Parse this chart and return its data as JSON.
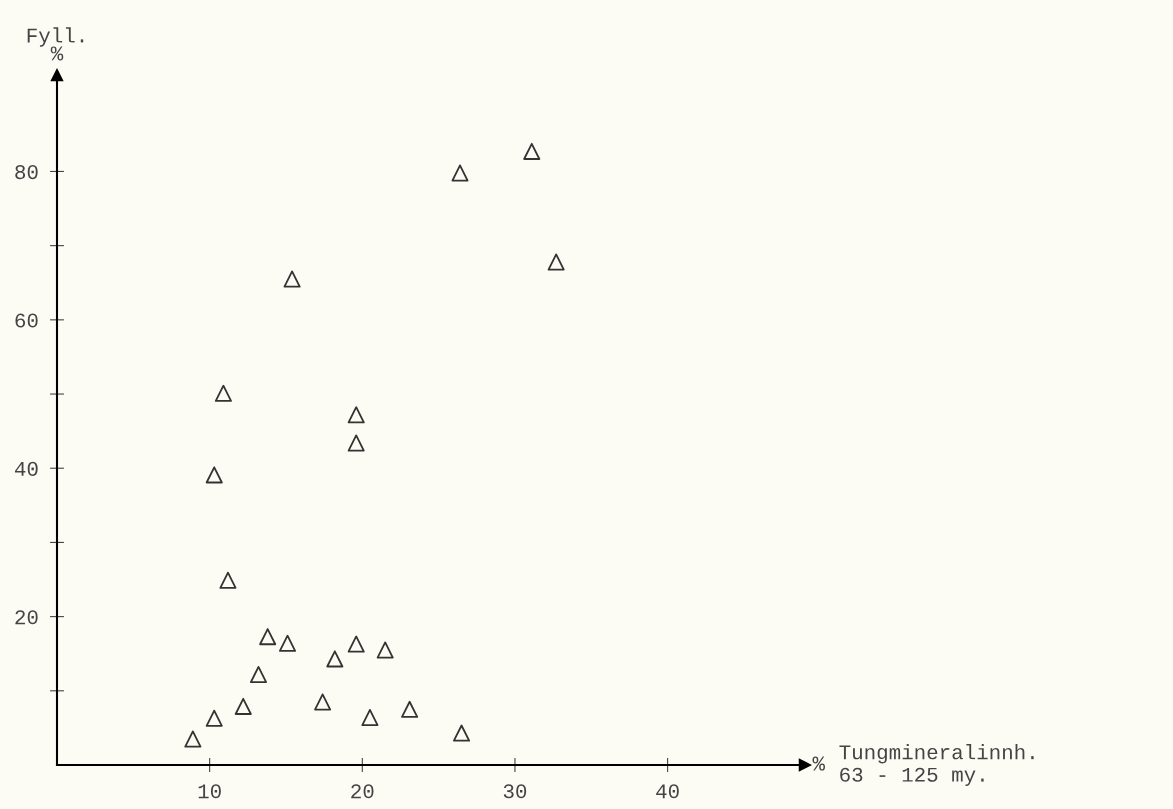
{
  "chart_data": {
    "type": "scatter",
    "ylabel": "Fyll.\n%",
    "xlabel": "Tungmineralinnh.\n63 - 125 my.",
    "annotations": [
      "%"
    ],
    "marker": "triangle",
    "grid": false,
    "xlim": [
      0,
      49
    ],
    "ylim": [
      0,
      93
    ],
    "xticks": [
      10,
      20,
      30,
      40
    ],
    "yticks": [
      {
        "value": 10,
        "label": null
      },
      20,
      {
        "value": 30,
        "label": null
      },
      40,
      {
        "value": 50,
        "label": null
      },
      60,
      {
        "value": 70,
        "label": null
      },
      80
    ],
    "series": [
      {
        "color": "#333333",
        "x": [
          8.9,
          10.3,
          12.2,
          13.2,
          13.8,
          15.1,
          11.2,
          10.3,
          10.9,
          15.4,
          19.6,
          19.6,
          17.4,
          18.2,
          19.6,
          21.5,
          20.5,
          23.1,
          26.5,
          26.4,
          31.1,
          32.7
        ],
        "values": [
          3.5,
          6.3,
          7.9,
          12.2,
          17.3,
          16.4,
          24.9,
          39.1,
          50.1,
          65.5,
          47.2,
          43.4,
          8.5,
          14.3,
          16.3,
          15.5,
          6.4,
          7.5,
          4.3,
          79.8,
          82.7,
          67.8
        ]
      }
    ]
  }
}
